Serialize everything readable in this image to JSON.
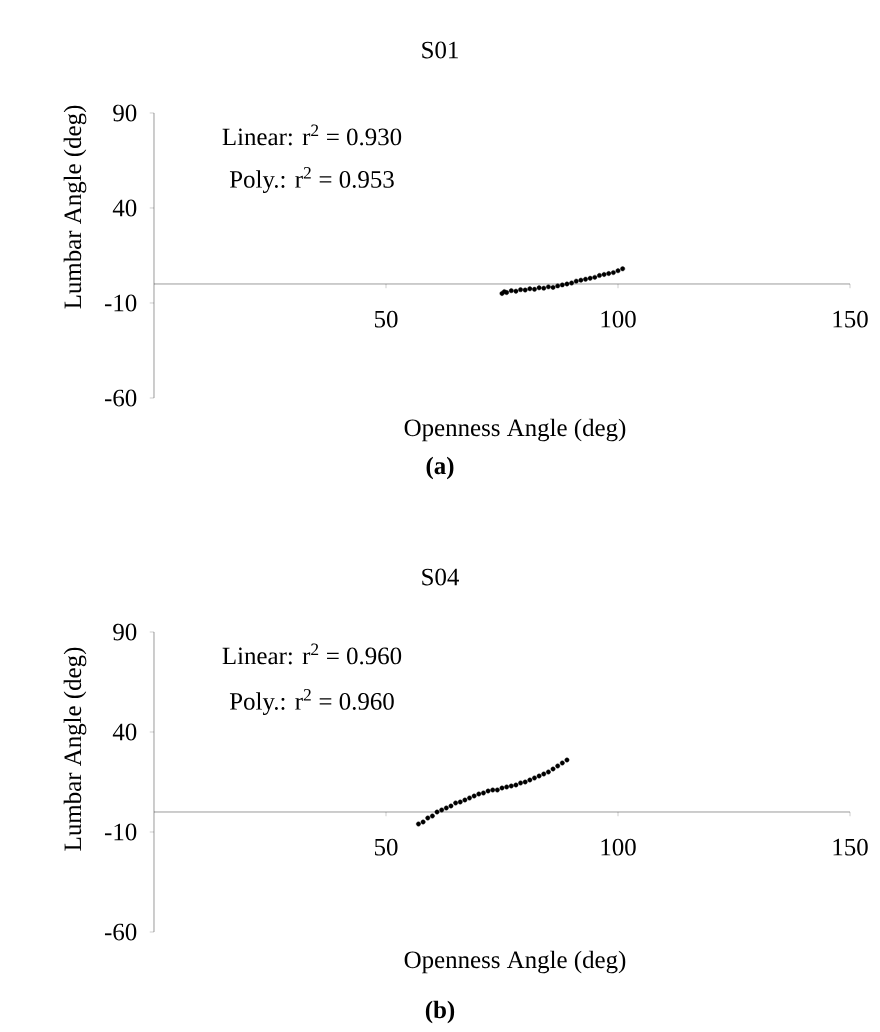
{
  "chart_data": [
    {
      "type": "scatter",
      "title": "S01",
      "xlabel": "Openness Angle (deg)",
      "ylabel": "Lumbar Angle (deg)",
      "annotations": [
        "Linear: r$^{2}$ = 0.930",
        "Poly.: r$^{2}$ = 0.953",
        "(a)"
      ],
      "xlim": [
        0,
        150
      ],
      "ylim": [
        -60,
        90
      ],
      "xticks": [
        50,
        100,
        150
      ],
      "yticks": [
        -60,
        -10,
        40,
        90
      ],
      "marker": "circle",
      "series": [
        {
          "color": "#000000",
          "x": [
            75,
            75.5,
            76,
            77,
            78,
            79,
            80,
            81,
            82,
            83,
            84,
            85,
            86,
            87,
            88,
            89,
            90,
            91,
            92,
            93,
            94,
            95,
            96,
            97,
            98,
            99,
            100,
            101
          ],
          "values": [
            -5,
            -4,
            -4.5,
            -3.5,
            -3.8,
            -3,
            -3.2,
            -2.5,
            -2.8,
            -2,
            -2.2,
            -1.5,
            -1.8,
            -1,
            -0.5,
            0,
            0.5,
            1.5,
            2,
            2.5,
            3,
            3.5,
            4.5,
            5,
            5.5,
            6,
            7,
            8
          ]
        }
      ]
    },
    {
      "type": "scatter",
      "title": "S04",
      "xlabel": "Openness Angle (deg)",
      "ylabel": "Lumbar Angle (deg)",
      "annotations": [
        "Linear: r$^{2}$ = 0.960",
        "Poly.: r$^{2}$ = 0.960",
        "(b)"
      ],
      "xlim": [
        0,
        150
      ],
      "ylim": [
        -60,
        90
      ],
      "xticks": [
        50,
        100,
        150
      ],
      "yticks": [
        -60,
        -10,
        40,
        90
      ],
      "marker": "circle",
      "series": [
        {
          "color": "#000000",
          "x": [
            57,
            58,
            59,
            60,
            61,
            62,
            63,
            64,
            65,
            66,
            67,
            68,
            69,
            70,
            71,
            72,
            73,
            74,
            75,
            76,
            77,
            78,
            79,
            80,
            81,
            82,
            83,
            84,
            85,
            86,
            87,
            88,
            89
          ],
          "values": [
            -6,
            -5,
            -3,
            -2,
            0,
            1,
            2,
            3,
            4.5,
            5,
            6,
            7,
            8,
            9,
            9.5,
            10.5,
            11,
            11,
            12,
            12.5,
            13,
            13.5,
            14.5,
            15,
            16,
            17,
            18,
            19,
            20,
            21.5,
            23,
            24.5,
            26
          ]
        }
      ]
    }
  ]
}
